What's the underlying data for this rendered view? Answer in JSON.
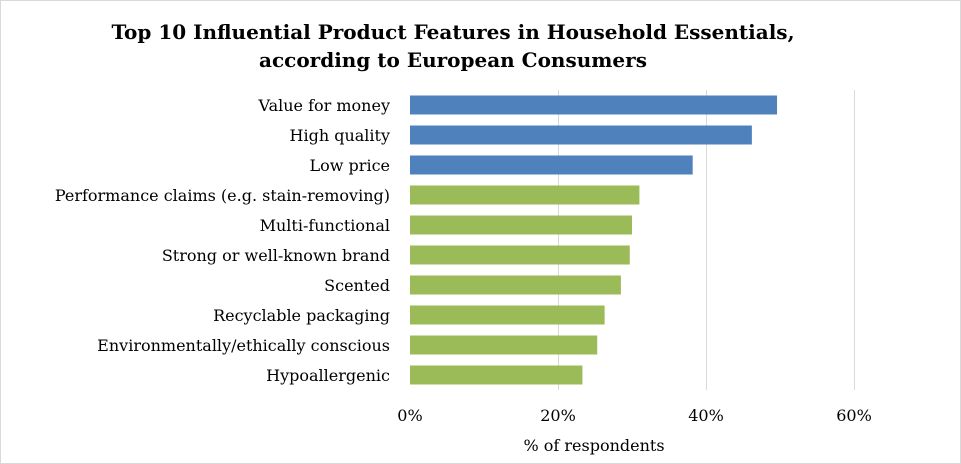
{
  "chart_data": {
    "type": "bar",
    "orientation": "horizontal",
    "title_lines": [
      "Top 10 Influential Product Features in Household Essentials,",
      "according to European Consumers"
    ],
    "xlabel": "% of respondents",
    "ylabel": "",
    "xlim": [
      0,
      60
    ],
    "x_ticks": [
      0,
      20,
      40,
      60
    ],
    "tick_suffix": "%",
    "grid": true,
    "legend": "none",
    "categories": [
      "Value for money",
      "High quality",
      "Low price",
      "Performance claims (e.g. stain-removing)",
      "Multi-functional",
      "Strong or well-known brand",
      "Scented",
      "Recyclable packaging",
      "Environmentally/ethically conscious",
      "Hypoallergenic"
    ],
    "values": [
      49.6,
      46.2,
      38.2,
      31.0,
      30.0,
      29.7,
      28.5,
      26.3,
      25.3,
      23.3
    ],
    "colors": [
      "#4f81bd",
      "#4f81bd",
      "#4f81bd",
      "#9bbb59",
      "#9bbb59",
      "#9bbb59",
      "#9bbb59",
      "#9bbb59",
      "#9bbb59",
      "#9bbb59"
    ]
  }
}
